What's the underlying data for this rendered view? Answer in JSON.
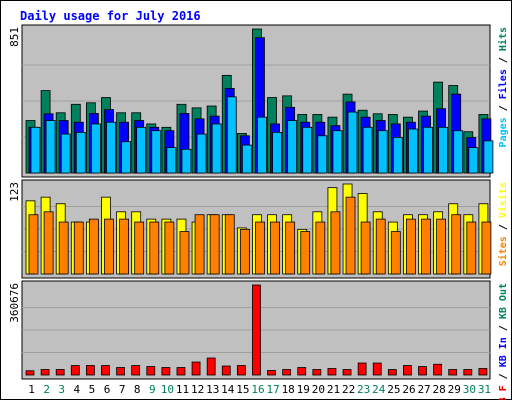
{
  "title": "Daily usage for July 2016",
  "colors": {
    "page_bg": "#ffffff",
    "chart_bg": "#c0c0c0",
    "frame": "#000000",
    "title": "#0000ff",
    "hits": "#00805c",
    "files": "#0000ff",
    "pages": "#00c0ff",
    "visits": "#ffff00",
    "sites": "#ff8000",
    "kb_in": "#0000ff",
    "kb_out": "#00805c",
    "kb_f": "#ff0000",
    "day_weekday": "#000000",
    "day_weekend": "#00805c"
  },
  "chart_data": {
    "type": "bar",
    "title": "Daily usage for July 2016",
    "categories": [
      "1",
      "2",
      "3",
      "4",
      "5",
      "6",
      "7",
      "8",
      "9",
      "10",
      "11",
      "12",
      "13",
      "14",
      "15",
      "16",
      "17",
      "18",
      "19",
      "20",
      "21",
      "22",
      "23",
      "24",
      "25",
      "26",
      "27",
      "28",
      "29",
      "30",
      "31"
    ],
    "weekend_days": [
      "2",
      "3",
      "9",
      "10",
      "16",
      "17",
      "23",
      "24",
      "30",
      "31"
    ],
    "panels": [
      {
        "name": "hits_files_pages",
        "max_label": "851",
        "legend": [
          {
            "text": "Pages",
            "color": "#00c0ff"
          },
          {
            "text": " / ",
            "color": "#000000"
          },
          {
            "text": "Files",
            "color": "#0000ff"
          },
          {
            "text": " / ",
            "color": "#000000"
          },
          {
            "text": "Hits",
            "color": "#00805c"
          }
        ],
        "ylim": [
          0,
          851
        ],
        "series": [
          {
            "key": "hits",
            "color": "#00805c",
            "values": [
              310,
              487,
              356,
              406,
              415,
              446,
              356,
              356,
              290,
              270,
              406,
              385,
              396,
              577,
              234,
              851,
              446,
              456,
              346,
              346,
              330,
              466,
              371,
              350,
              346,
              330,
              366,
              537,
              517,
              244,
              346
            ]
          },
          {
            "key": "files",
            "color": "#0000ff",
            "values": [
              270,
              350,
              310,
              300,
              352,
              375,
              300,
              310,
              270,
              250,
              352,
              320,
              336,
              500,
              220,
              800,
              290,
              388,
              300,
              300,
              280,
              420,
              330,
              310,
              290,
              300,
              336,
              380,
              466,
              210,
              320
            ]
          },
          {
            "key": "pages",
            "color": "#00c0ff",
            "values": [
              270,
              310,
              230,
              240,
              290,
              300,
              185,
              270,
              250,
              150,
              140,
              230,
              290,
              450,
              165,
              330,
              240,
              310,
              270,
              220,
              250,
              360,
              270,
              250,
              210,
              260,
              270,
              270,
              250,
              150,
              190
            ]
          }
        ]
      },
      {
        "name": "visits_sites",
        "max_label": "123",
        "legend": [
          {
            "text": "Sites",
            "color": "#ff8000"
          },
          {
            "text": " / ",
            "color": "#000000"
          },
          {
            "text": "Visits",
            "color": "#ffff00"
          }
        ],
        "ylim": [
          0,
          123
        ],
        "series": [
          {
            "key": "visits",
            "color": "#ffff00",
            "values": [
              100,
              105,
              96,
              71,
              71,
              105,
              85,
              85,
              75,
              75,
              75,
              71,
              81,
              81,
              63,
              81,
              81,
              81,
              61,
              85,
              118,
              123,
              110,
              85,
              71,
              81,
              81,
              85,
              96,
              81,
              96
            ]
          },
          {
            "key": "sites",
            "color": "#ff8000",
            "values": [
              81,
              85,
              71,
              71,
              75,
              75,
              75,
              71,
              71,
              71,
              58,
              81,
              81,
              81,
              61,
              71,
              71,
              71,
              58,
              71,
              85,
              105,
              71,
              75,
              58,
              75,
              75,
              75,
              81,
              71,
              71
            ]
          }
        ]
      },
      {
        "name": "kbytes",
        "max_label": "360676",
        "legend": [
          {
            "text": "KB F",
            "color": "#ff0000"
          },
          {
            "text": " / ",
            "color": "#000000"
          },
          {
            "text": "KB In",
            "color": "#0000ff"
          },
          {
            "text": " / ",
            "color": "#000000"
          },
          {
            "text": "KB Out",
            "color": "#00805c"
          }
        ],
        "ylim": [
          0,
          360676
        ],
        "series": [
          {
            "key": "kb_f",
            "color": "#ff0000",
            "values": [
              17000,
              22000,
              22000,
              38000,
              38000,
              38000,
              30000,
              38000,
              34000,
              30000,
              30000,
              52000,
              68000,
              36000,
              38000,
              360676,
              18000,
              22000,
              30000,
              22000,
              26000,
              22000,
              48000,
              48000,
              22000,
              38000,
              34000,
              43000,
              22000,
              22000,
              26000
            ]
          }
        ]
      }
    ]
  }
}
